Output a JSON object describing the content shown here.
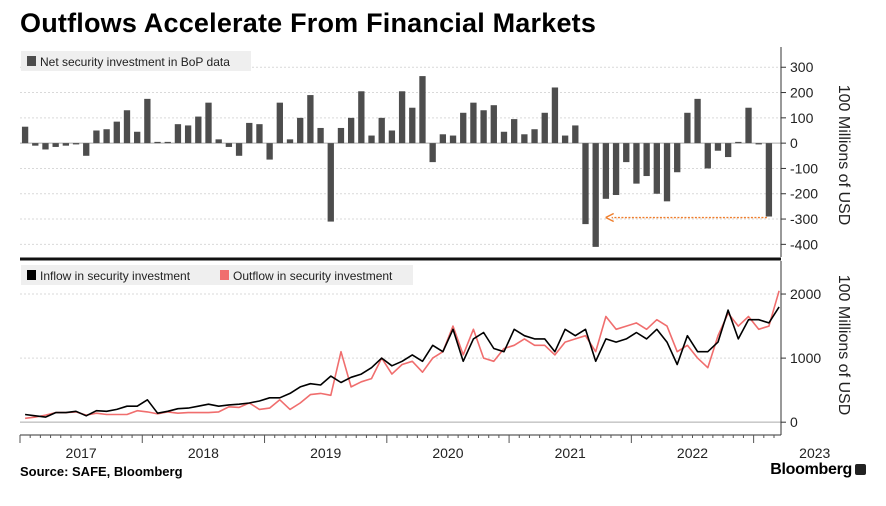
{
  "title": "Outflows Accelerate From Financial Markets",
  "source": "Source: SAFE, Bloomberg",
  "brand": "Bloomberg",
  "chart_data": [
    {
      "type": "bar",
      "legend": "Net security investment in BoP data",
      "ylabel": "100 Millions of USD",
      "ylim": [
        -450,
        380
      ],
      "yticks": [
        -400,
        -300,
        -200,
        -100,
        0,
        100,
        200,
        300
      ],
      "color": "#4d4d4d",
      "annotation": "arrow pointing from latest bar back to Nov 2021 level",
      "values": [
        65,
        -10,
        -25,
        -15,
        -10,
        -5,
        -50,
        50,
        55,
        85,
        130,
        45,
        175,
        5,
        5,
        75,
        70,
        105,
        160,
        15,
        -15,
        -50,
        80,
        75,
        -65,
        160,
        15,
        100,
        190,
        60,
        -310,
        60,
        100,
        205,
        30,
        100,
        50,
        205,
        140,
        265,
        -75,
        35,
        30,
        120,
        160,
        130,
        150,
        45,
        95,
        35,
        55,
        120,
        220,
        30,
        70,
        -320,
        -410,
        -220,
        -205,
        -75,
        -160,
        -130,
        -200,
        -230,
        -115,
        120,
        175,
        -100,
        -30,
        -55,
        5,
        140,
        -5,
        -290
      ]
    },
    {
      "type": "line",
      "ylabel": "100 Millions of USD",
      "ylim": [
        -200,
        2500
      ],
      "yticks": [
        0,
        1000,
        2000
      ],
      "x_start": "2017-01",
      "x_ticks": [
        "2017",
        "2018",
        "2019",
        "2020",
        "2021",
        "2022",
        "2023"
      ],
      "series": [
        {
          "name": "Inflow in security investment",
          "color": "#000000",
          "values": [
            120,
            100,
            80,
            150,
            150,
            170,
            100,
            180,
            170,
            200,
            250,
            250,
            350,
            140,
            170,
            210,
            220,
            250,
            280,
            250,
            270,
            280,
            300,
            330,
            380,
            380,
            450,
            550,
            600,
            580,
            720,
            620,
            700,
            750,
            850,
            1000,
            880,
            950,
            1050,
            950,
            1200,
            1100,
            1450,
            950,
            1300,
            1400,
            1150,
            1100,
            1450,
            1350,
            1300,
            1300,
            1100,
            1450,
            1350,
            1450,
            950,
            1300,
            1250,
            1300,
            1400,
            1300,
            1450,
            1250,
            900,
            1350,
            1100,
            1100,
            1250,
            1750,
            1300,
            1600,
            1600,
            1550,
            1800
          ]
        },
        {
          "name": "Outflow in security investment",
          "color": "#f06e6e",
          "values": [
            60,
            80,
            110,
            150,
            150,
            160,
            110,
            140,
            120,
            120,
            120,
            180,
            160,
            130,
            160,
            140,
            150,
            150,
            150,
            160,
            240,
            230,
            300,
            200,
            220,
            350,
            200,
            300,
            430,
            450,
            420,
            1100,
            550,
            630,
            680,
            1000,
            750,
            900,
            950,
            780,
            1000,
            1100,
            1500,
            1050,
            1450,
            1000,
            950,
            1150,
            1200,
            1300,
            1200,
            1200,
            1050,
            1250,
            1300,
            1350,
            1100,
            1650,
            1450,
            1500,
            1550,
            1450,
            1600,
            1500,
            1100,
            1200,
            1000,
            850,
            1350,
            1700,
            1500,
            1650,
            1450,
            1500,
            2050
          ]
        }
      ]
    }
  ]
}
